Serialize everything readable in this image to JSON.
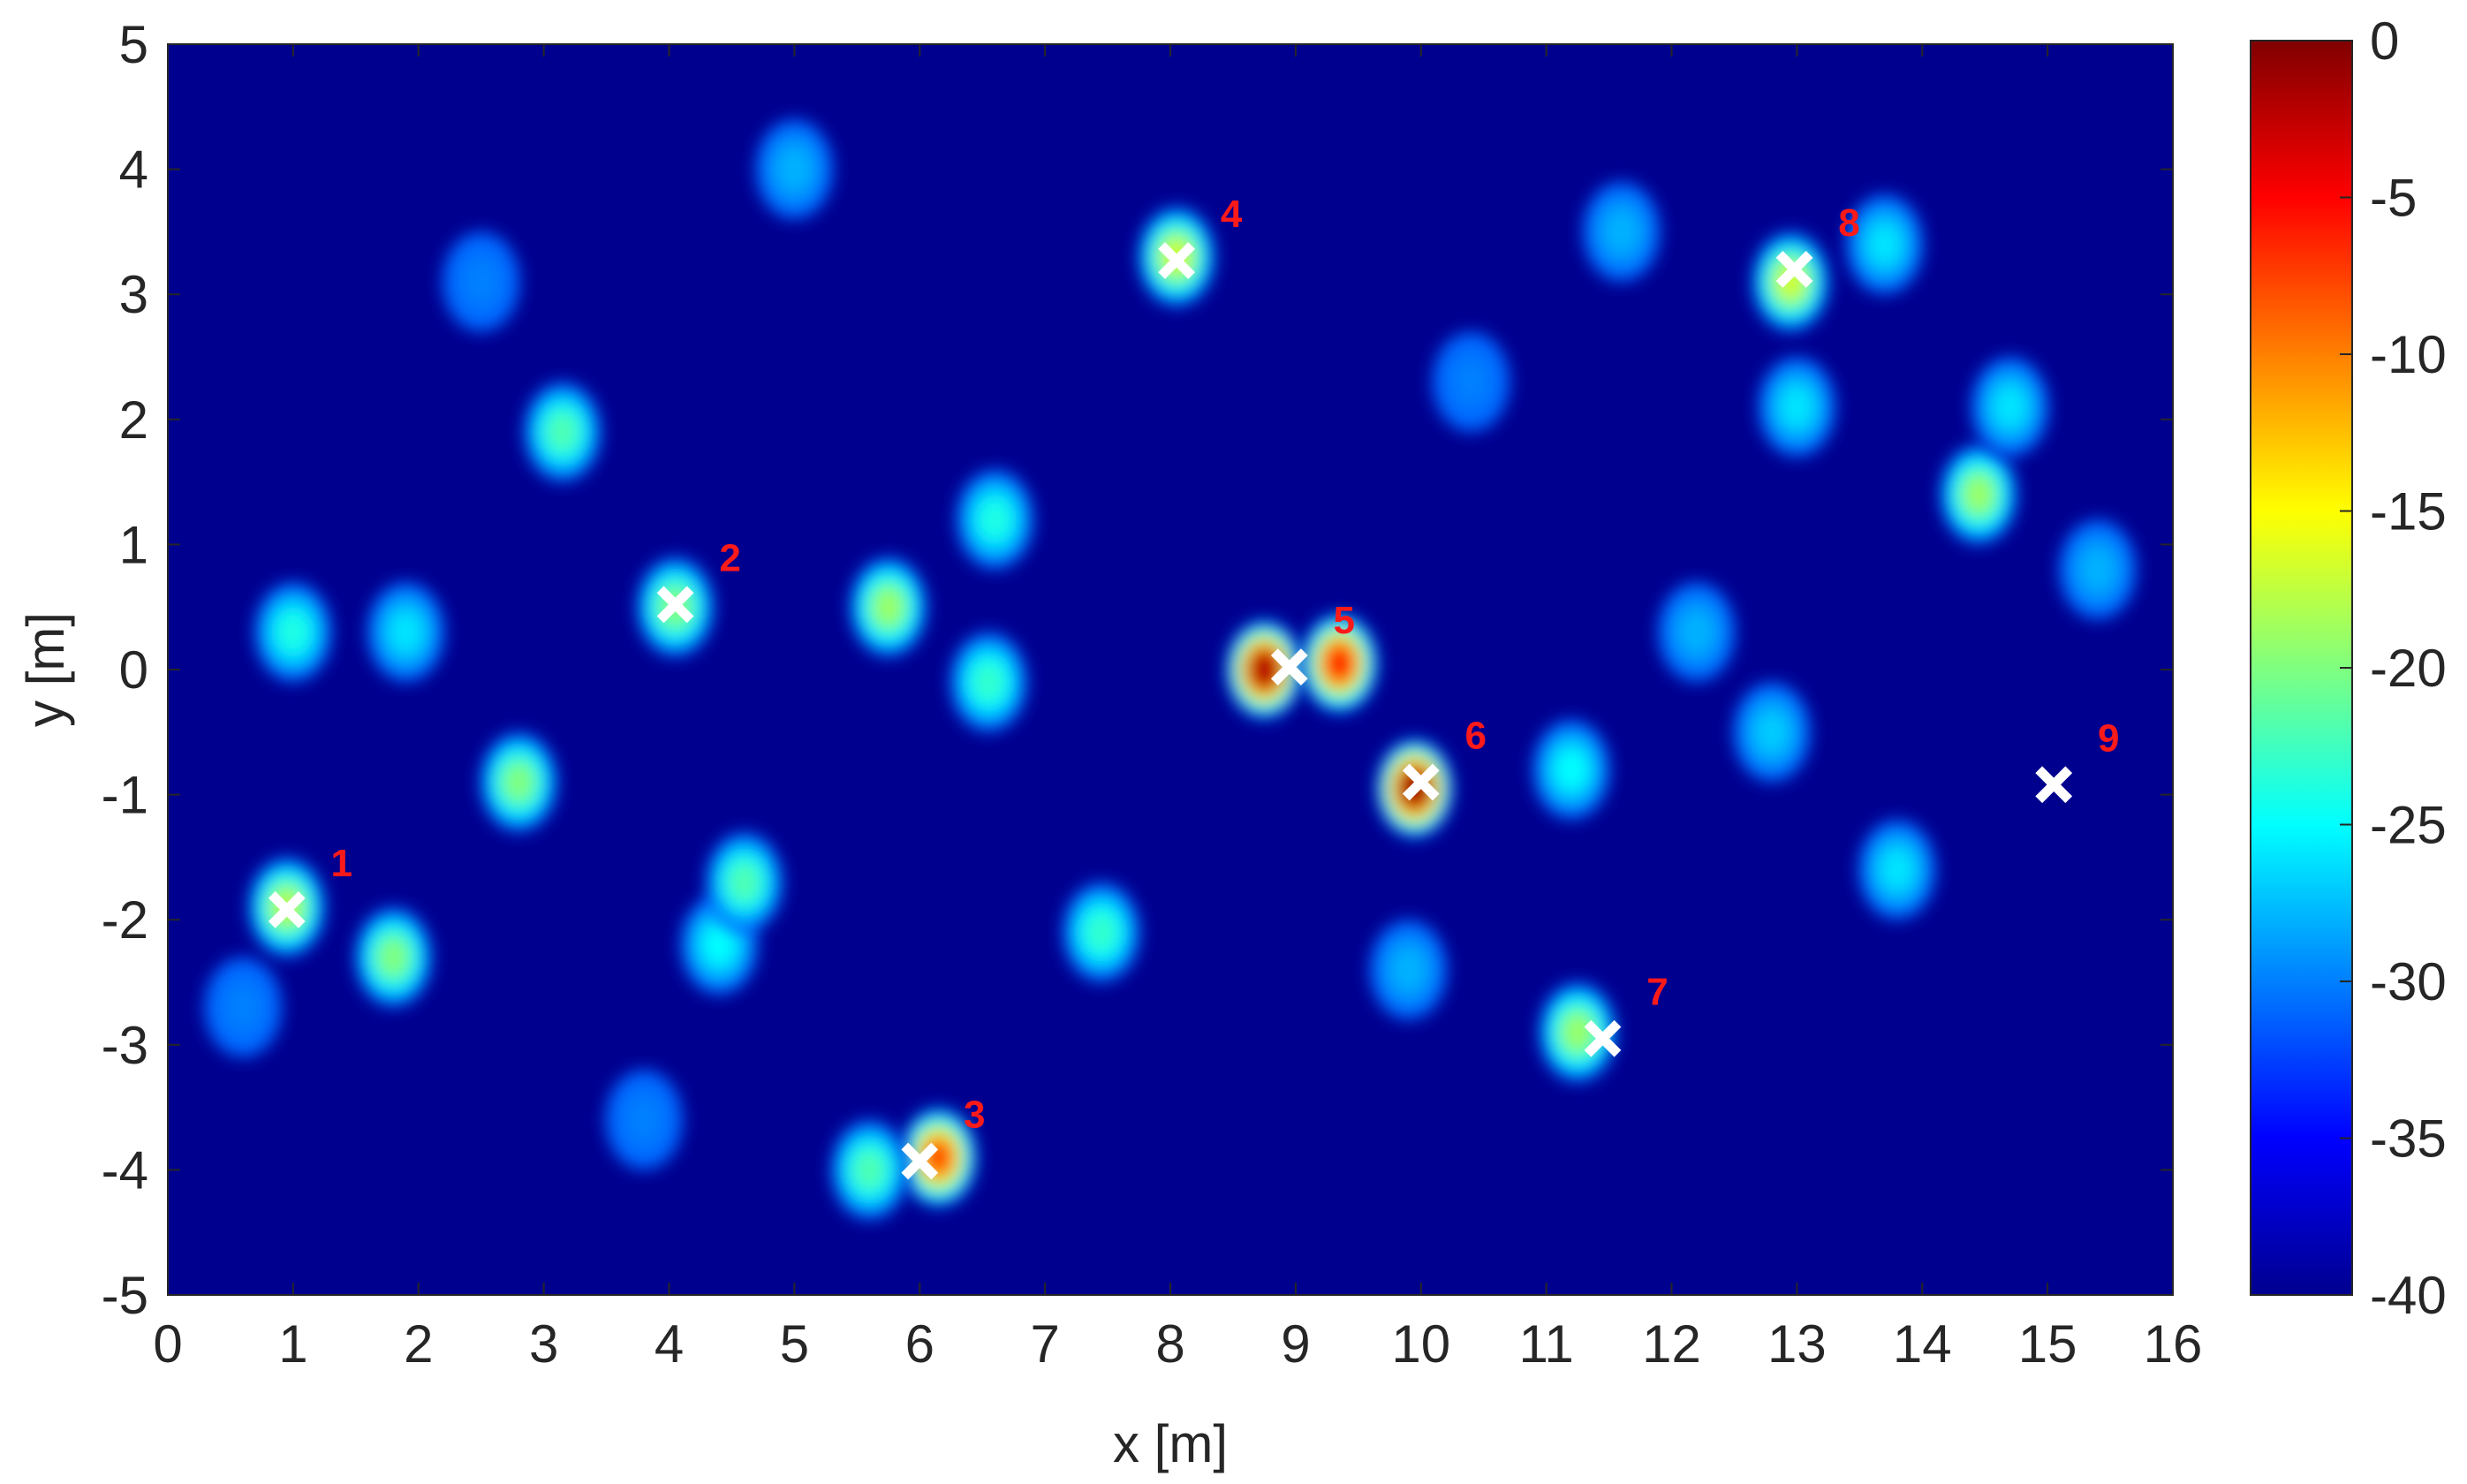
{
  "chart_data": {
    "type": "heatmap",
    "title": "",
    "xlabel": "x [m]",
    "ylabel": "y [m]",
    "xlim": [
      0,
      16
    ],
    "ylim": [
      -5,
      5
    ],
    "x_ticks": [
      "0",
      "1",
      "2",
      "3",
      "4",
      "5",
      "6",
      "7",
      "8",
      "9",
      "10",
      "11",
      "12",
      "13",
      "14",
      "15",
      "16"
    ],
    "y_ticks": [
      "5",
      "4",
      "3",
      "2",
      "1",
      "0",
      "-1",
      "-2",
      "-3",
      "-4",
      "-5"
    ],
    "colorbar": {
      "range": [
        -40,
        0
      ],
      "ticks": [
        "0",
        "-5",
        "-10",
        "-15",
        "-20",
        "-25",
        "-30",
        "-35",
        "-40"
      ],
      "colormap": "jet"
    },
    "background_value": -40,
    "hotspots": [
      {
        "x": 0.95,
        "y": -1.9,
        "value": -18
      },
      {
        "x": 1.8,
        "y": -2.3,
        "value": -20
      },
      {
        "x": 1.0,
        "y": 0.3,
        "value": -24
      },
      {
        "x": 1.9,
        "y": 0.3,
        "value": -26
      },
      {
        "x": 2.8,
        "y": -0.9,
        "value": -20
      },
      {
        "x": 3.15,
        "y": 1.9,
        "value": -22
      },
      {
        "x": 4.05,
        "y": 0.5,
        "value": -20
      },
      {
        "x": 4.4,
        "y": -2.2,
        "value": -25
      },
      {
        "x": 4.6,
        "y": -1.7,
        "value": -22
      },
      {
        "x": 5.75,
        "y": 0.5,
        "value": -19
      },
      {
        "x": 6.6,
        "y": 1.2,
        "value": -24
      },
      {
        "x": 6.55,
        "y": -0.1,
        "value": -23
      },
      {
        "x": 6.15,
        "y": -3.9,
        "value": -8
      },
      {
        "x": 5.6,
        "y": -4.0,
        "value": -22
      },
      {
        "x": 7.45,
        "y": -2.1,
        "value": -23
      },
      {
        "x": 8.05,
        "y": 3.3,
        "value": -17
      },
      {
        "x": 8.75,
        "y": 0.0,
        "value": -2
      },
      {
        "x": 9.35,
        "y": 0.05,
        "value": -6
      },
      {
        "x": 9.95,
        "y": -0.95,
        "value": -1
      },
      {
        "x": 11.25,
        "y": -2.9,
        "value": -19
      },
      {
        "x": 11.2,
        "y": -0.8,
        "value": -25
      },
      {
        "x": 12.95,
        "y": 3.1,
        "value": -17
      },
      {
        "x": 13.0,
        "y": 2.1,
        "value": -26
      },
      {
        "x": 14.45,
        "y": 1.4,
        "value": -19
      },
      {
        "x": 14.7,
        "y": 2.1,
        "value": -26
      },
      {
        "x": 13.7,
        "y": 3.4,
        "value": -26
      },
      {
        "x": 15.4,
        "y": 0.8,
        "value": -28
      },
      {
        "x": 5.0,
        "y": 4.0,
        "value": -28
      },
      {
        "x": 10.4,
        "y": 2.3,
        "value": -30
      },
      {
        "x": 11.6,
        "y": 3.5,
        "value": -28
      },
      {
        "x": 12.2,
        "y": 0.3,
        "value": -28
      },
      {
        "x": 13.8,
        "y": -1.6,
        "value": -26
      },
      {
        "x": 0.6,
        "y": -2.7,
        "value": -30
      },
      {
        "x": 3.8,
        "y": -3.6,
        "value": -30
      },
      {
        "x": 9.9,
        "y": -2.4,
        "value": -28
      },
      {
        "x": 12.8,
        "y": -0.5,
        "value": -27
      },
      {
        "x": 2.5,
        "y": 3.1,
        "value": -30
      }
    ],
    "markers": [
      {
        "label": "1",
        "x": 0.95,
        "y": -1.92
      },
      {
        "label": "2",
        "x": 4.05,
        "y": 0.52
      },
      {
        "label": "3",
        "x": 6.0,
        "y": -3.93
      },
      {
        "label": "4",
        "x": 8.05,
        "y": 3.27
      },
      {
        "label": "5",
        "x": 8.95,
        "y": 0.02
      },
      {
        "label": "6",
        "x": 10.0,
        "y": -0.9
      },
      {
        "label": "7",
        "x": 11.45,
        "y": -2.95
      },
      {
        "label": "8",
        "x": 12.98,
        "y": 3.2
      },
      {
        "label": "9",
        "x": 15.05,
        "y": -0.92
      }
    ],
    "marker_color": "#ffffff",
    "label_color": "#ff1a1a",
    "grid": false
  }
}
